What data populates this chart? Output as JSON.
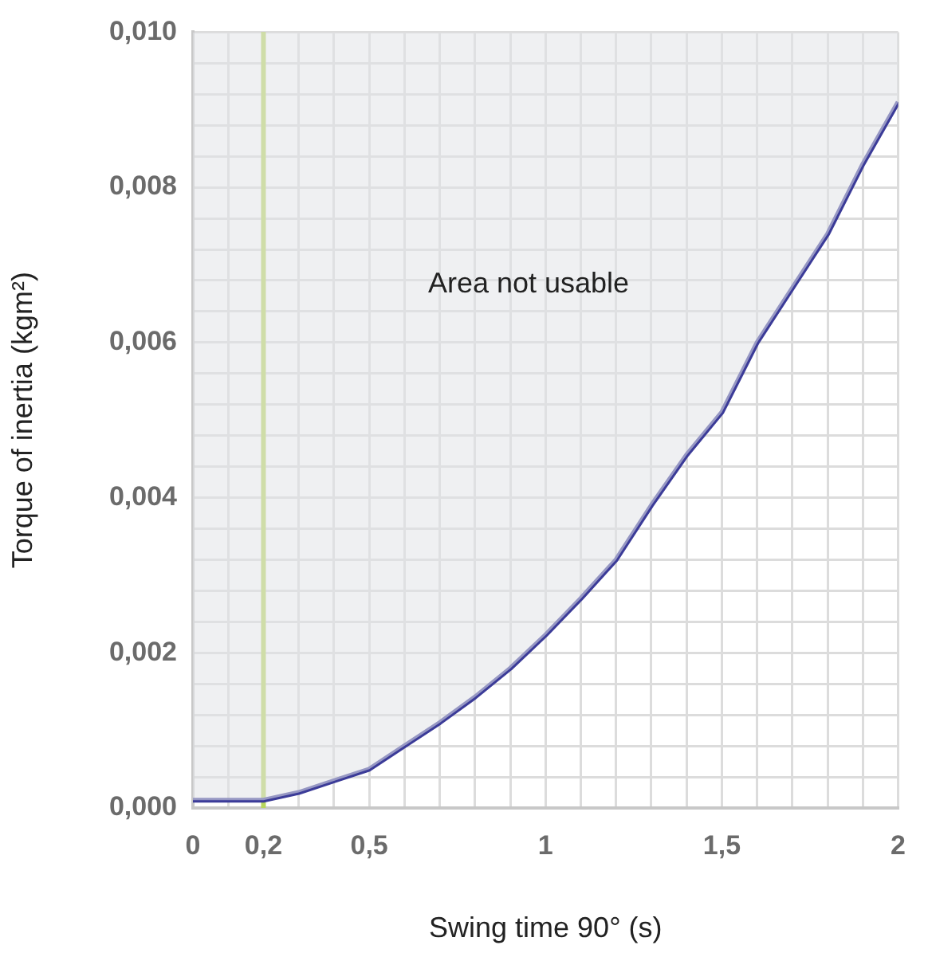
{
  "chart_data": {
    "type": "line",
    "xlabel": "Swing time 90° (s)",
    "ylabel": "Torque of inertia (kgm²)",
    "x": [
      0,
      0.2,
      0.3,
      0.4,
      0.5,
      0.6,
      0.7,
      0.8,
      0.9,
      1.0,
      1.1,
      1.2,
      1.3,
      1.4,
      1.5,
      1.6,
      1.7,
      1.8,
      1.9,
      2.0
    ],
    "series": [
      {
        "color": "#3b3b98",
        "values": [
          0.0001,
          0.0001,
          0.0002,
          0.00035,
          0.0005,
          0.0008,
          0.0011,
          0.00143,
          0.0018,
          0.00223,
          0.0027,
          0.0032,
          0.0039,
          0.00455,
          0.0051,
          0.006,
          0.0067,
          0.0074,
          0.0083,
          0.0091
        ],
        "lower": [
          0.0001,
          0.0001,
          0.0002,
          0.00035,
          0.0005,
          0.0008,
          0.0011,
          0.00143,
          0.0018,
          0.00223,
          0.0027,
          0.0032,
          0.0039,
          0.00455,
          0.0051,
          0.006,
          0.0067,
          0.0074,
          0.0083,
          0.0091
        ],
        "upper": [
          0.01,
          0.01,
          0.01,
          0.01,
          0.01,
          0.01,
          0.01,
          0.01,
          0.01,
          0.01,
          0.01,
          0.01,
          0.01,
          0.01,
          0.01,
          0.01,
          0.01,
          0.01,
          0.01,
          0.01
        ]
      }
    ],
    "xlim": [
      0,
      2
    ],
    "xticks": [
      {
        "value": 0,
        "label": "0"
      },
      {
        "value": 0.1,
        "label": null
      },
      {
        "value": 0.2,
        "label": "0,2"
      },
      {
        "value": 0.3,
        "label": null
      },
      {
        "value": 0.4,
        "label": null
      },
      {
        "value": 0.5,
        "label": "0,5"
      },
      {
        "value": 0.6,
        "label": null
      },
      {
        "value": 0.7,
        "label": null
      },
      {
        "value": 0.8,
        "label": null
      },
      {
        "value": 0.9,
        "label": null
      },
      {
        "value": 1,
        "label": "1"
      },
      {
        "value": 1.1,
        "label": null
      },
      {
        "value": 1.2,
        "label": null
      },
      {
        "value": 1.3,
        "label": null
      },
      {
        "value": 1.4,
        "label": null
      },
      {
        "value": 1.5,
        "label": "1,5"
      },
      {
        "value": 1.6,
        "label": null
      },
      {
        "value": 1.7,
        "label": null
      },
      {
        "value": 1.8,
        "label": null
      },
      {
        "value": 1.9,
        "label": null
      },
      {
        "value": 2,
        "label": "2"
      }
    ],
    "ylim": [
      0,
      0.01
    ],
    "yticks": [
      {
        "value": 0,
        "label": "0,000"
      },
      {
        "value": 0.0004,
        "label": null
      },
      {
        "value": 0.0008,
        "label": null
      },
      {
        "value": 0.0012,
        "label": null
      },
      {
        "value": 0.0016,
        "label": null
      },
      {
        "value": 0.002,
        "label": "0,002"
      },
      {
        "value": 0.0024,
        "label": null
      },
      {
        "value": 0.0028,
        "label": null
      },
      {
        "value": 0.0032,
        "label": null
      },
      {
        "value": 0.0036,
        "label": null
      },
      {
        "value": 0.004,
        "label": "0,004"
      },
      {
        "value": 0.0044,
        "label": null
      },
      {
        "value": 0.0048,
        "label": null
      },
      {
        "value": 0.0052,
        "label": null
      },
      {
        "value": 0.0056,
        "label": null
      },
      {
        "value": 0.006,
        "label": "0,006"
      },
      {
        "value": 0.0064,
        "label": null
      },
      {
        "value": 0.0068,
        "label": null
      },
      {
        "value": 0.0072,
        "label": null
      },
      {
        "value": 0.0076,
        "label": null
      },
      {
        "value": 0.008,
        "label": "0,008"
      },
      {
        "value": 0.0084,
        "label": null
      },
      {
        "value": 0.0088,
        "label": null
      },
      {
        "value": 0.0092,
        "label": null
      },
      {
        "value": 0.0096,
        "label": null
      },
      {
        "value": 0.01,
        "label": "0,010"
      }
    ],
    "ref_lines": [
      {
        "axis": "x",
        "value": 0.2,
        "color": "#b8d65c"
      }
    ],
    "annotations": [
      "Area not usable"
    ],
    "grid": true,
    "legend": false,
    "marker": "none",
    "line_style": "solid"
  }
}
